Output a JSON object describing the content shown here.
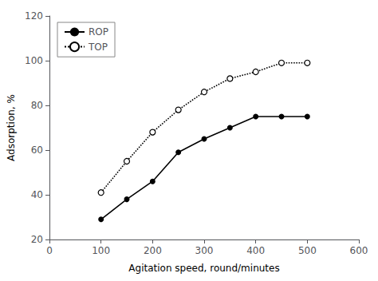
{
  "chart_data": {
    "type": "line",
    "xlabel": "Agitation speed, round/minutes",
    "ylabel": "Adsorption, %",
    "x": [
      100,
      150,
      200,
      250,
      300,
      350,
      400,
      450,
      500
    ],
    "series": [
      {
        "name": "ROP",
        "color": "black",
        "marker": "circle",
        "line_style": "solid",
        "values": [
          29,
          38,
          46,
          59,
          65,
          70,
          75,
          75,
          75
        ]
      },
      {
        "name": "TOP",
        "color": "black",
        "marker": "circle_open",
        "line_style": "dotted",
        "values": [
          41,
          55,
          68,
          78,
          86,
          92,
          95,
          99,
          99
        ]
      }
    ],
    "xlim": [
      0,
      600
    ],
    "ylim": [
      20,
      120
    ],
    "xticks": [
      0,
      100,
      200,
      300,
      400,
      500,
      600
    ],
    "yticks": [
      20,
      40,
      60,
      80,
      100,
      120
    ],
    "grid": false,
    "legend": "upper left"
  }
}
